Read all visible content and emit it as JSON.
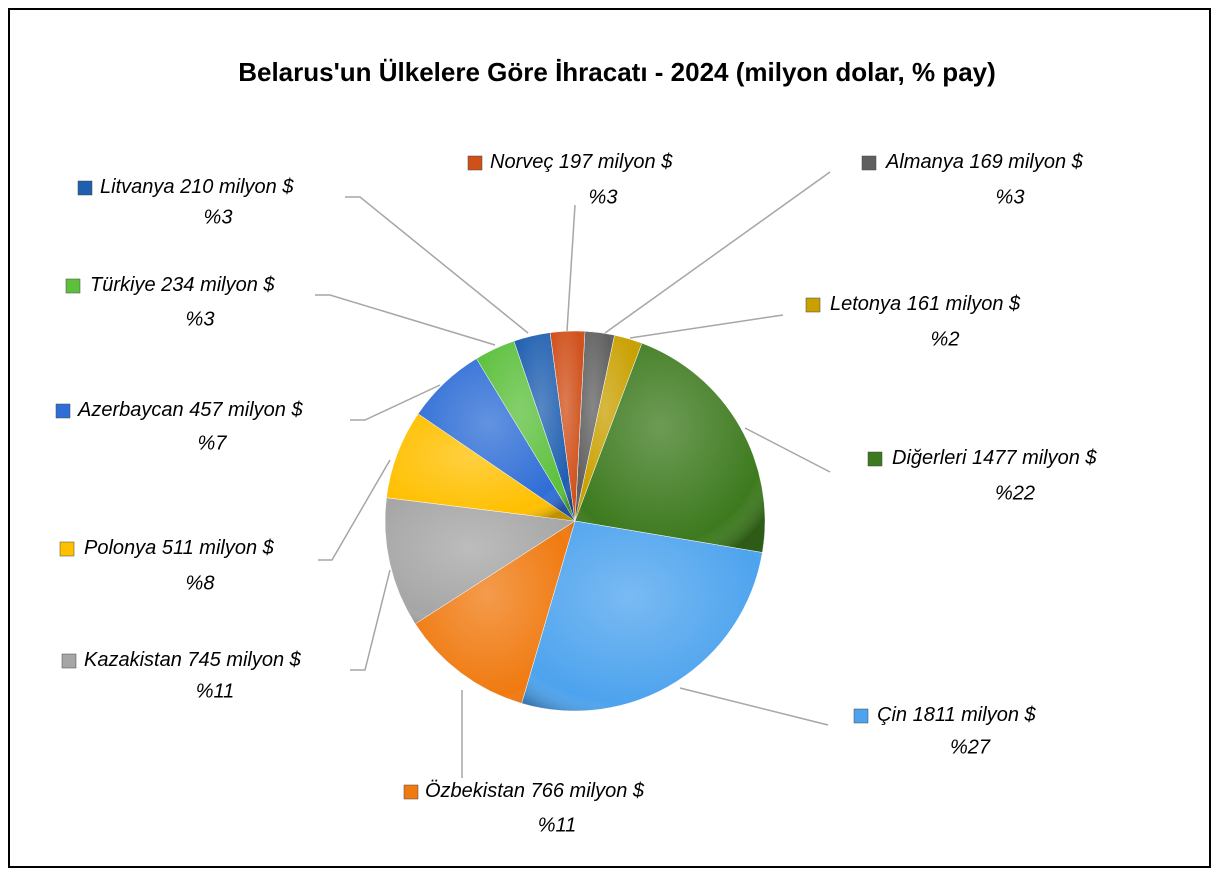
{
  "chart_data": {
    "type": "pie",
    "title": "Belarus'un Ülkelere Göre İhracatı - 2024 (milyon dolar, % pay)",
    "categories": [
      "Almanya",
      "Letonya",
      "Diğerleri",
      "Çin",
      "Özbekistan",
      "Kazakistan",
      "Polonya",
      "Azerbaycan",
      "Türkiye",
      "Litvanya",
      "Norveç"
    ],
    "values": [
      169,
      161,
      1477,
      1811,
      766,
      745,
      511,
      457,
      234,
      210,
      197
    ],
    "value_labels": [
      "169 milyon $",
      "161 milyon $",
      "1477 milyon $",
      "1811 milyon $",
      "766 milyon $",
      "745 milyon $",
      "511 milyon $",
      "457 milyon $",
      "234 milyon $",
      "210 milyon $",
      "197 milyon $"
    ],
    "percents": [
      3,
      2,
      22,
      27,
      11,
      11,
      8,
      7,
      3,
      3,
      3
    ],
    "percent_labels": [
      "%3",
      "%2",
      "%22",
      "%27",
      "%11",
      "%11",
      "%8",
      "%7",
      "%3",
      "%3",
      "%3"
    ],
    "colors": [
      "#5f5f5f",
      "#c9a000",
      "#3d7a1e",
      "#4da3ee",
      "#f07a10",
      "#a6a6a6",
      "#ffc000",
      "#2f6ed6",
      "#5cc03c",
      "#1f5fb0",
      "#d0501a"
    ]
  }
}
